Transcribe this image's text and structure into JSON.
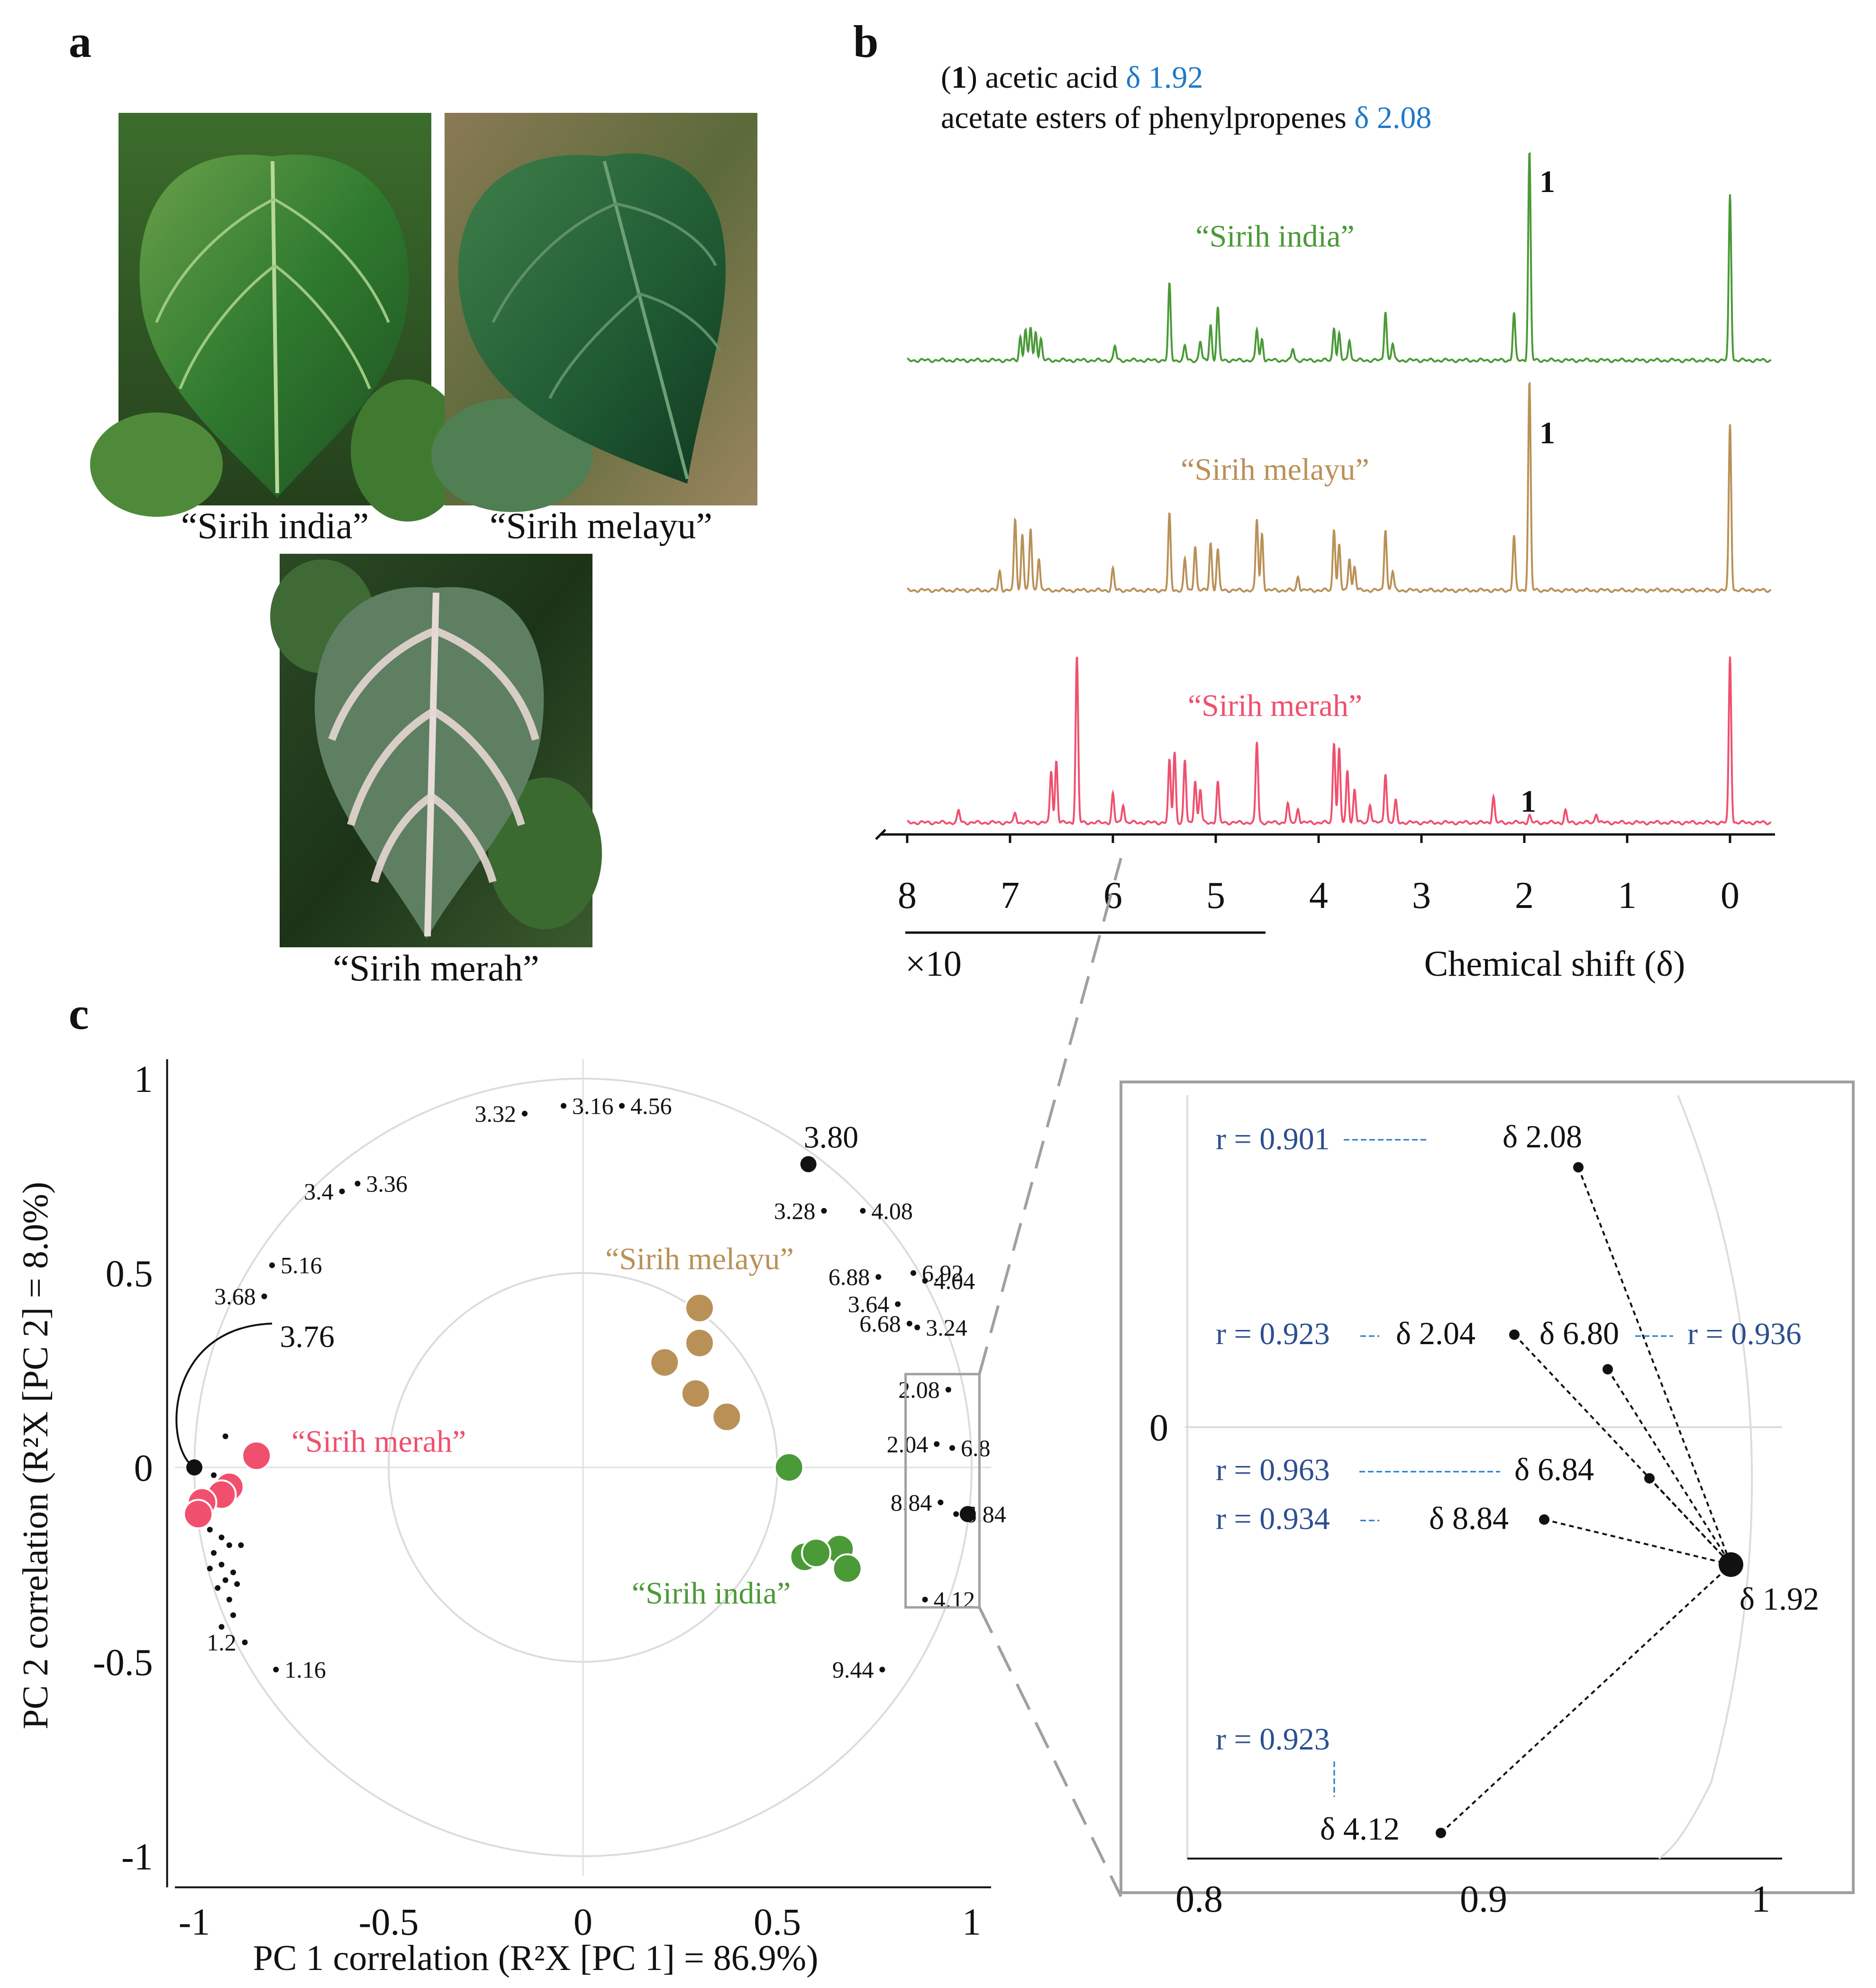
{
  "panel_a": {
    "letter": "a",
    "captions": [
      "“Sirih india”",
      "“Sirih melayu”",
      "“Sirih merah”"
    ],
    "images": [
      "sirih-india-leaf",
      "sirih-melayu-leaf",
      "sirih-merah-leaf"
    ]
  },
  "panel_b": {
    "letter": "b",
    "legend": {
      "line1_num": "1",
      "line1_text": "acetic acid",
      "line1_shift": "δ 1.92",
      "line2_text": "acetate esters of phenylpropenes",
      "line2_shift": "δ 2.08"
    },
    "peak_marker": "1",
    "spectra": [
      {
        "name": "“Sirih india”",
        "color": "#4a9a37"
      },
      {
        "name": "“Sirih melayu”",
        "color": "#b99157"
      },
      {
        "name": "“Sirih merah”",
        "color": "#f0506e"
      }
    ],
    "x_ticks": [
      "8",
      "7",
      "6",
      "5",
      "4",
      "3",
      "2",
      "1",
      "0"
    ],
    "scale_note": "×10",
    "xlabel": "Chemical shift (δ)"
  },
  "panel_c": {
    "letter": "c",
    "chart_data": {
      "type": "scatter",
      "xlabel": "PC 1 correlation (R²X [PC 1] = 86.9%)",
      "ylabel": "PC 2 correlation (R²X [PC 2] = 8.0%)",
      "xlim": [
        -1.05,
        1.05
      ],
      "ylim": [
        -1.05,
        1.05
      ],
      "x_ticks": [
        "-1",
        "-0.5",
        "0",
        "0.5",
        "1"
      ],
      "y_ticks": [
        "1",
        "0.5",
        "0",
        "-0.5",
        "-1"
      ],
      "x_tick_values": [
        -1,
        -0.5,
        0,
        0.5,
        1
      ],
      "y_tick_values": [
        1,
        0.5,
        0,
        -0.5,
        -1
      ],
      "circles_radius": [
        1,
        0.5
      ],
      "group_labels": [
        {
          "text": "“Sirih melayu”",
          "color": "#b99157"
        },
        {
          "text": "“Sirih merah”",
          "color": "#f0506e"
        },
        {
          "text": "“Sirih india”",
          "color": "#4a9a37"
        }
      ],
      "samples": [
        {
          "group": "Sirih melayu",
          "color": "#b99157",
          "points": [
            [
              0.3,
              0.41
            ],
            [
              0.3,
              0.32
            ],
            [
              0.21,
              0.27
            ],
            [
              0.29,
              0.19
            ],
            [
              0.37,
              0.13
            ]
          ]
        },
        {
          "group": "Sirih merah",
          "color": "#f0506e",
          "points": [
            [
              -0.84,
              0.03
            ],
            [
              -0.91,
              -0.05
            ],
            [
              -0.93,
              -0.07
            ],
            [
              -0.98,
              -0.09
            ],
            [
              -0.99,
              -0.12
            ]
          ]
        },
        {
          "group": "Sirih india",
          "color": "#4a9a37",
          "points": [
            [
              0.53,
              0.0
            ],
            [
              0.57,
              -0.23
            ],
            [
              0.66,
              -0.21
            ],
            [
              0.68,
              -0.26
            ],
            [
              0.6,
              -0.22
            ]
          ]
        }
      ],
      "variables": [
        {
          "label": "3.32",
          "x": -0.15,
          "y": 0.91
        },
        {
          "label": "3.16",
          "x": -0.05,
          "y": 0.93
        },
        {
          "label": "4.56",
          "x": 0.1,
          "y": 0.93
        },
        {
          "label": "3.4",
          "x": -0.62,
          "y": 0.71
        },
        {
          "label": "3.36",
          "x": -0.58,
          "y": 0.73
        },
        {
          "label": "5.16",
          "x": -0.8,
          "y": 0.52
        },
        {
          "label": "3.68",
          "x": -0.82,
          "y": 0.44
        },
        {
          "label": "3.28",
          "x": 0.62,
          "y": 0.66
        },
        {
          "label": "4.08",
          "x": 0.72,
          "y": 0.66
        },
        {
          "label": "6.92",
          "x": 0.85,
          "y": 0.5
        },
        {
          "label": "4.04",
          "x": 0.88,
          "y": 0.48
        },
        {
          "label": "6.88",
          "x": 0.76,
          "y": 0.49
        },
        {
          "label": "3.64",
          "x": 0.81,
          "y": 0.42
        },
        {
          "label": "3.24",
          "x": 0.86,
          "y": 0.36
        },
        {
          "label": "6.68",
          "x": 0.84,
          "y": 0.37
        },
        {
          "label": "2.08",
          "x": 0.94,
          "y": 0.2
        },
        {
          "label": "2.04",
          "x": 0.91,
          "y": 0.06
        },
        {
          "label": "6.8",
          "x": 0.95,
          "y": 0.05
        },
        {
          "label": "8.84",
          "x": 0.92,
          "y": -0.09
        },
        {
          "label": "6.84",
          "x": 0.96,
          "y": -0.12
        },
        {
          "label": "4.12",
          "x": 0.88,
          "y": -0.34
        },
        {
          "label": "9.44",
          "x": 0.77,
          "y": -0.52
        },
        {
          "label": "1.2",
          "x": -0.87,
          "y": -0.45
        },
        {
          "label": "1.16",
          "x": -0.79,
          "y": -0.52
        }
      ],
      "highlight_points": [
        {
          "label": "3.80",
          "x": 0.58,
          "y": 0.78
        },
        {
          "label": "3.76",
          "x": -1.0,
          "y": 0.0
        },
        {
          "label": "",
          "x": 0.99,
          "y": -0.12
        }
      ],
      "zoom": {
        "x_ticks": [
          "0.8",
          "0.9",
          "1"
        ],
        "y_tick": "0",
        "points": [
          {
            "label": "δ 2.08",
            "r": "r = 0.901",
            "x": 0.938,
            "y": 0.2
          },
          {
            "label": "δ 2.04",
            "r": "r = 0.923",
            "x": 0.918,
            "y": 0.068
          },
          {
            "label": "δ 6.80",
            "r": "r = 0.936",
            "x": 0.946,
            "y": 0.05
          },
          {
            "label": "δ 6.84",
            "r": "r = 0.963",
            "x": 0.954,
            "y": -0.075
          },
          {
            "label": "δ 8.84",
            "r": "r = 0.934",
            "x": 0.91,
            "y": -0.098
          },
          {
            "label": "δ 4.12",
            "r": "r = 0.923",
            "x": 0.89,
            "y": -0.33
          }
        ],
        "center": {
          "label": "δ 1.92",
          "x": 0.99,
          "y": -0.12
        }
      }
    }
  }
}
